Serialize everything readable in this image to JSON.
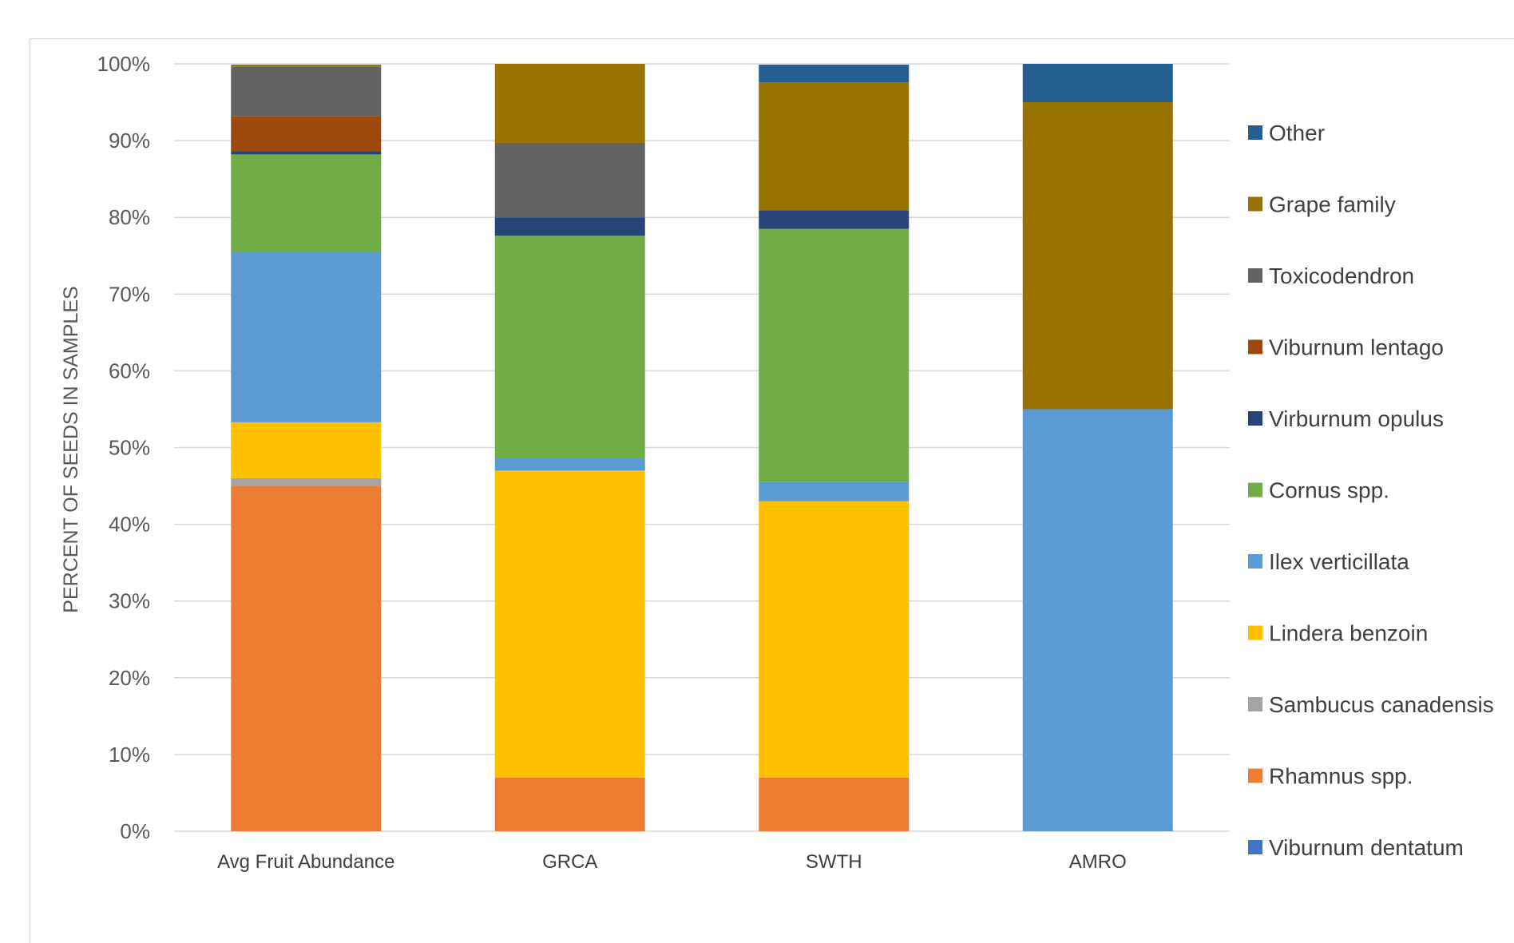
{
  "chart_data": {
    "type": "bar",
    "stacked": true,
    "ylabel": "PERCENT OF SEEDS IN SAMPLES",
    "xlabel": "",
    "ylim": [
      0,
      100
    ],
    "y_ticks": [
      "0%",
      "10%",
      "20%",
      "30%",
      "40%",
      "50%",
      "60%",
      "70%",
      "80%",
      "90%",
      "100%"
    ],
    "y_tick_values": [
      0,
      10,
      20,
      30,
      40,
      50,
      60,
      70,
      80,
      90,
      100
    ],
    "grid": true,
    "legend_position": "right",
    "categories": [
      "Avg Fruit Abundance",
      "GRCA",
      "SWTH",
      "AMRO"
    ],
    "series": [
      {
        "name": "Viburnum dentatum",
        "color": "#4472c4",
        "values": [
          0,
          0,
          0,
          0
        ]
      },
      {
        "name": "Rhamnus spp.",
        "color": "#ed7d31",
        "values": [
          45,
          7,
          7,
          0
        ]
      },
      {
        "name": "Sambucus canadensis",
        "color": "#a5a5a5",
        "values": [
          1,
          0,
          0,
          0
        ]
      },
      {
        "name": "Lindera benzoin",
        "color": "#ffc000",
        "values": [
          7.3,
          40,
          36,
          0
        ]
      },
      {
        "name": "Ilex verticillata",
        "color": "#5b9bd5",
        "values": [
          22.2,
          1.6,
          2.5,
          55
        ]
      },
      {
        "name": "Cornus spp.",
        "color": "#70ad47",
        "values": [
          12.7,
          29,
          33,
          0
        ]
      },
      {
        "name": "Virburnum opulus",
        "color": "#264478",
        "values": [
          0.4,
          2.4,
          2.4,
          0
        ]
      },
      {
        "name": "Viburnum lentago",
        "color": "#9e480e",
        "values": [
          4.6,
          0,
          0,
          0
        ]
      },
      {
        "name": "Toxicodendron",
        "color": "#636363",
        "values": [
          6.4,
          9.7,
          0,
          0
        ]
      },
      {
        "name": "Grape family",
        "color": "#997300",
        "values": [
          0.3,
          10.3,
          16.7,
          40
        ]
      },
      {
        "name": "Other",
        "color": "#255e91",
        "values": [
          0,
          0,
          2.3,
          5
        ]
      }
    ]
  }
}
